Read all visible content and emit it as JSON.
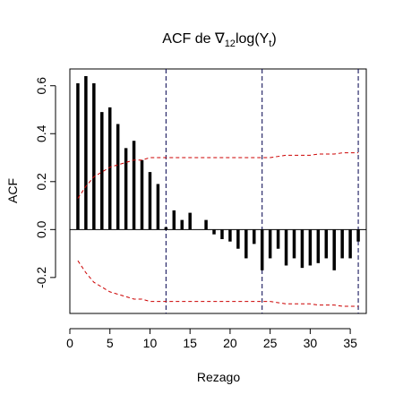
{
  "chart_data": {
    "type": "bar",
    "title": {
      "prefix": "ACF de ",
      "symbol": "∇",
      "subscript": "12",
      "func": "log(Y",
      "inner_subscript": "t",
      "suffix": ")"
    },
    "xlabel": "Rezago",
    "ylabel": "ACF",
    "xlim": [
      0,
      37
    ],
    "ylim": [
      -0.35,
      0.67
    ],
    "x_ticks": [
      0,
      5,
      10,
      15,
      20,
      25,
      30,
      35
    ],
    "x_tick_labels": [
      "0",
      "5",
      "10",
      "15",
      "20",
      "25",
      "30",
      "35"
    ],
    "y_ticks": [
      -0.2,
      0.0,
      0.2,
      0.4,
      0.6
    ],
    "y_tick_labels": [
      "-0.2",
      "0.0",
      "0.2",
      "0.4",
      "0.6"
    ],
    "lags": [
      1,
      2,
      3,
      4,
      5,
      6,
      7,
      8,
      9,
      10,
      11,
      12,
      13,
      14,
      15,
      16,
      17,
      18,
      19,
      20,
      21,
      22,
      23,
      24,
      25,
      26,
      27,
      28,
      29,
      30,
      31,
      32,
      33,
      34,
      35,
      36
    ],
    "values": [
      0.61,
      0.64,
      0.61,
      0.49,
      0.51,
      0.44,
      0.34,
      0.37,
      0.29,
      0.24,
      0.19,
      0.01,
      0.08,
      0.04,
      0.07,
      0.0,
      0.04,
      -0.02,
      -0.04,
      -0.05,
      -0.08,
      -0.12,
      -0.06,
      -0.17,
      -0.12,
      -0.08,
      -0.15,
      -0.12,
      -0.16,
      -0.15,
      -0.14,
      -0.12,
      -0.17,
      -0.12,
      -0.12,
      -0.05
    ],
    "confidence_bounds": {
      "color": "#cc0000",
      "lags": [
        1,
        2,
        3,
        4,
        5,
        6,
        7,
        8,
        9,
        10,
        11,
        12,
        13,
        14,
        15,
        16,
        17,
        18,
        19,
        20,
        21,
        22,
        23,
        24,
        25,
        26,
        27,
        28,
        29,
        30,
        31,
        32,
        33,
        34,
        35,
        36
      ],
      "upper": [
        0.13,
        0.18,
        0.22,
        0.24,
        0.26,
        0.27,
        0.28,
        0.29,
        0.29,
        0.3,
        0.3,
        0.3,
        0.3,
        0.3,
        0.3,
        0.3,
        0.3,
        0.3,
        0.3,
        0.3,
        0.3,
        0.3,
        0.3,
        0.3,
        0.3,
        0.305,
        0.31,
        0.31,
        0.31,
        0.31,
        0.315,
        0.315,
        0.315,
        0.32,
        0.32,
        0.32
      ],
      "lower": [
        -0.13,
        -0.18,
        -0.22,
        -0.24,
        -0.26,
        -0.27,
        -0.28,
        -0.29,
        -0.29,
        -0.3,
        -0.3,
        -0.3,
        -0.3,
        -0.3,
        -0.3,
        -0.3,
        -0.3,
        -0.3,
        -0.3,
        -0.3,
        -0.3,
        -0.3,
        -0.3,
        -0.3,
        -0.3,
        -0.305,
        -0.31,
        -0.31,
        -0.31,
        -0.31,
        -0.315,
        -0.315,
        -0.315,
        -0.32,
        -0.32,
        -0.32
      ]
    },
    "seasonal_lines": {
      "x": [
        12,
        24,
        36
      ],
      "color": "#00004d"
    },
    "grid": false,
    "bar_color": "#000000"
  }
}
